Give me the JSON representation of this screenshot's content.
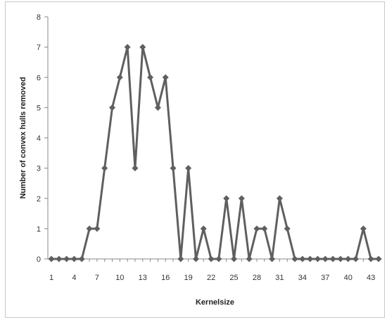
{
  "chart_data": {
    "type": "line",
    "xlabel": "Kernelsize",
    "ylabel": "Number of convex hulls removed",
    "x": [
      1,
      2,
      3,
      4,
      5,
      6,
      7,
      8,
      9,
      10,
      11,
      12,
      13,
      14,
      15,
      16,
      17,
      18,
      19,
      20,
      21,
      22,
      23,
      24,
      25,
      26,
      27,
      28,
      29,
      30,
      31,
      32,
      33,
      34,
      35,
      36,
      37,
      38,
      39,
      40,
      41,
      42,
      43,
      44
    ],
    "x_tick_labels": [
      "1",
      "4",
      "7",
      "10",
      "13",
      "16",
      "19",
      "22",
      "25",
      "28",
      "31",
      "34",
      "37",
      "40",
      "43"
    ],
    "x_tick_values": [
      1,
      4,
      7,
      10,
      13,
      16,
      19,
      22,
      25,
      28,
      31,
      34,
      37,
      40,
      43
    ],
    "xlim": [
      1,
      44
    ],
    "ylim": [
      0,
      8
    ],
    "y_tick_labels": [
      "0",
      "1",
      "2",
      "3",
      "4",
      "5",
      "6",
      "7",
      "8"
    ],
    "y_tick_values": [
      0,
      1,
      2,
      3,
      4,
      5,
      6,
      7,
      8
    ],
    "grid": false,
    "series": [
      {
        "values": [
          0,
          0,
          0,
          0,
          0,
          1,
          1,
          3,
          5,
          6,
          7,
          3,
          7,
          6,
          5,
          6,
          3,
          0,
          3,
          0,
          1,
          0,
          0,
          2,
          0,
          2,
          0,
          1,
          1,
          0,
          2,
          1,
          0,
          0,
          0,
          0,
          0,
          0,
          0,
          0,
          0,
          1,
          0,
          0
        ],
        "color": "#5f5f5f",
        "marker": "diamond"
      }
    ]
  }
}
